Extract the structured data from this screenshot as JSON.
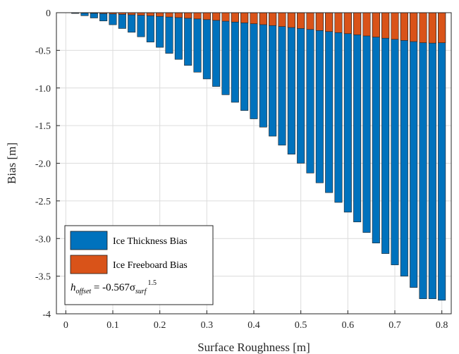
{
  "chart_data": {
    "type": "bar",
    "stacked": false,
    "xlabel": "Surface Roughness [m]",
    "ylabel": "Bias [m]",
    "xlim": [
      -0.02,
      0.82
    ],
    "ylim": [
      -4,
      0
    ],
    "xticks": [
      "0",
      "0.1",
      "0.2",
      "0.3",
      "0.4",
      "0.5",
      "0.6",
      "0.7",
      "0.8"
    ],
    "yticks": [
      "0",
      "-0.5",
      "-1.0",
      "-1.5",
      "-2.0",
      "-2.5",
      "-3.0",
      "-3.5",
      "-4"
    ],
    "grid": true,
    "legend_position": "bottom-left",
    "x": [
      0.02,
      0.04,
      0.06,
      0.08,
      0.1,
      0.12,
      0.14,
      0.16,
      0.18,
      0.2,
      0.22,
      0.24,
      0.26,
      0.28,
      0.3,
      0.32,
      0.34,
      0.36,
      0.38,
      0.4,
      0.42,
      0.44,
      0.46,
      0.48,
      0.5,
      0.52,
      0.54,
      0.56,
      0.58,
      0.6,
      0.62,
      0.64,
      0.66,
      0.68,
      0.7,
      0.72,
      0.74,
      0.76,
      0.78,
      0.8
    ],
    "series": [
      {
        "name": "Ice Thickness Bias",
        "color": "#0072BD",
        "values": [
          -0.01,
          -0.04,
          -0.07,
          -0.11,
          -0.16,
          -0.21,
          -0.26,
          -0.32,
          -0.39,
          -0.46,
          -0.54,
          -0.62,
          -0.7,
          -0.79,
          -0.88,
          -0.98,
          -1.09,
          -1.19,
          -1.3,
          -1.41,
          -1.52,
          -1.64,
          -1.76,
          -1.88,
          -2.0,
          -2.13,
          -2.26,
          -2.39,
          -2.52,
          -2.65,
          -2.78,
          -2.92,
          -3.06,
          -3.2,
          -3.35,
          -3.5,
          -3.65,
          -3.8,
          -3.8,
          -3.82
        ]
      },
      {
        "name": "Ice Freeboard Bias",
        "color": "#D95319",
        "values": [
          -0.002,
          -0.005,
          -0.008,
          -0.012,
          -0.017,
          -0.022,
          -0.028,
          -0.034,
          -0.041,
          -0.049,
          -0.057,
          -0.065,
          -0.074,
          -0.083,
          -0.092,
          -0.102,
          -0.113,
          -0.124,
          -0.135,
          -0.147,
          -0.159,
          -0.171,
          -0.184,
          -0.197,
          -0.21,
          -0.223,
          -0.237,
          -0.251,
          -0.265,
          -0.279,
          -0.294,
          -0.309,
          -0.324,
          -0.339,
          -0.354,
          -0.369,
          -0.384,
          -0.399,
          -0.404,
          -0.4
        ]
      }
    ],
    "annotation": {
      "lhs_base": "h",
      "lhs_sub": "offset",
      "middle": " = -0.567σ",
      "rhs_sub": "surf",
      "rhs_sup": "1.5"
    }
  }
}
